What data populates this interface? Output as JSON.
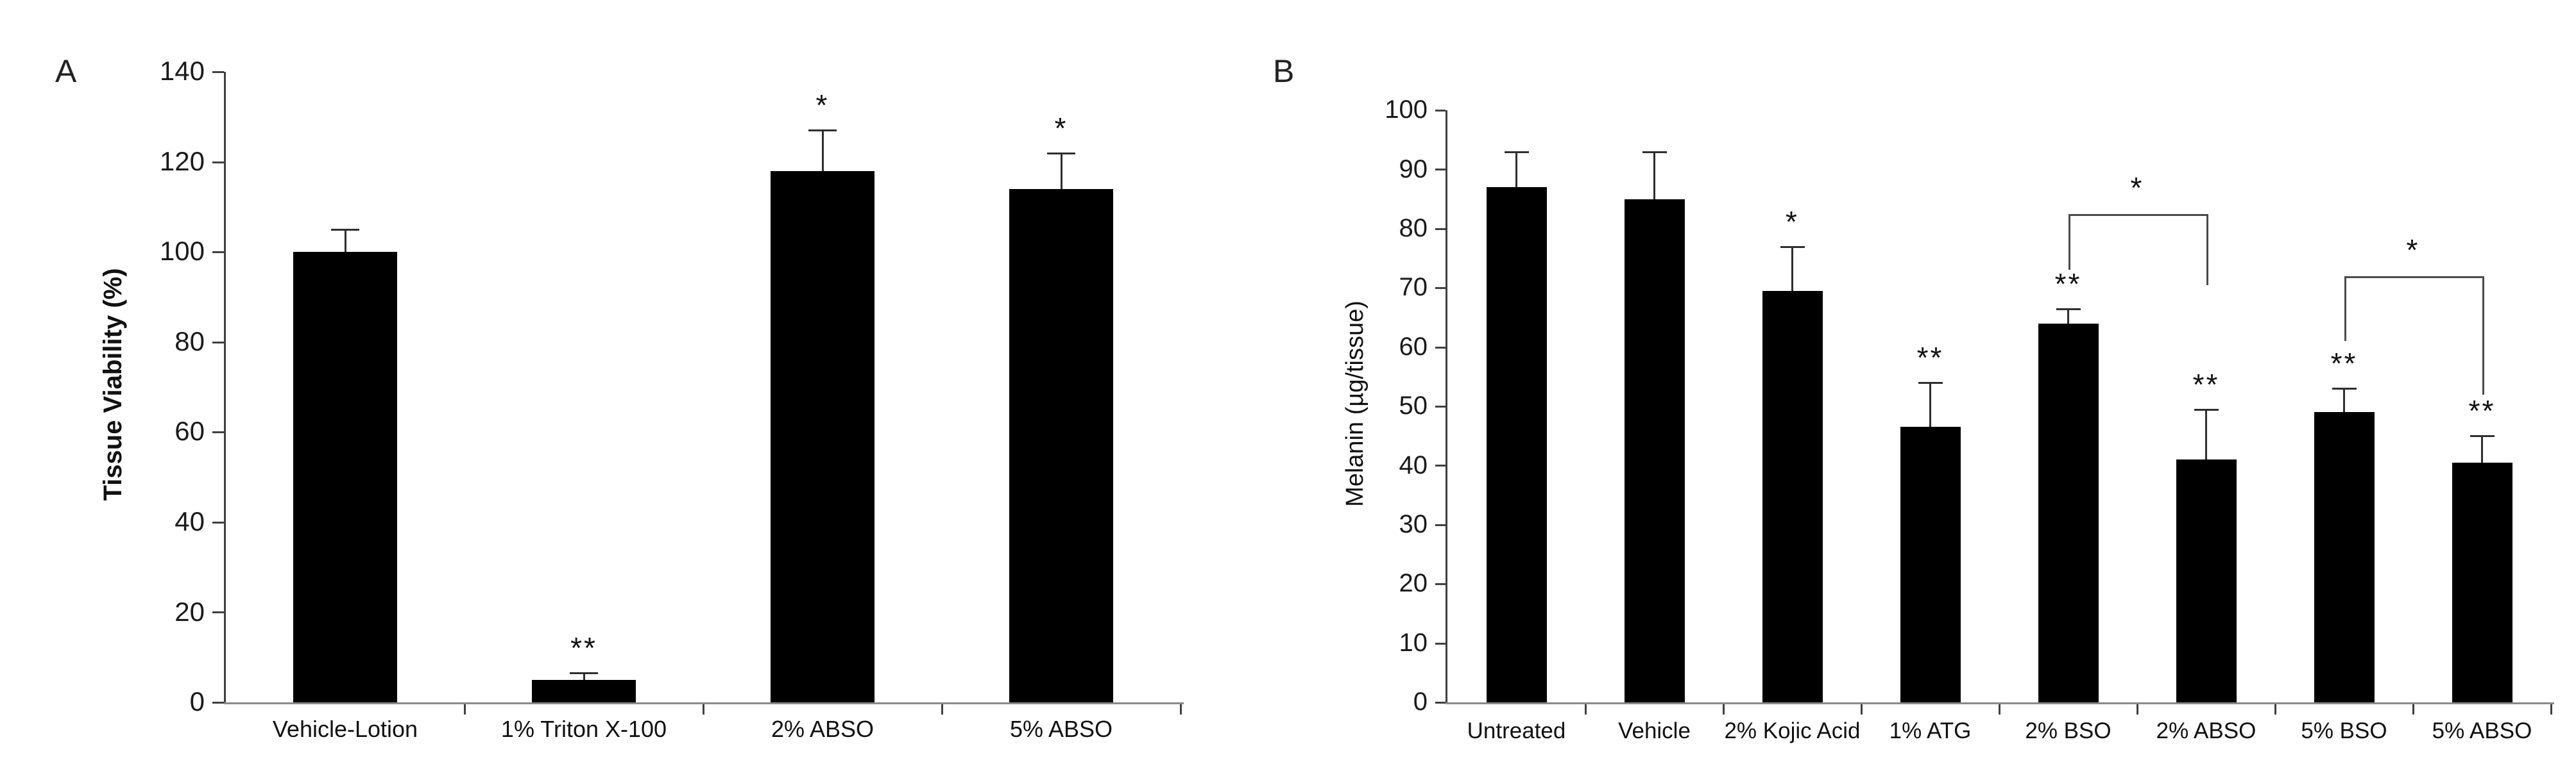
{
  "figure_title": "",
  "panel_labels": {
    "a": "A",
    "b": "B"
  },
  "style_colors": {
    "bar": "#000000",
    "axis": "#3f3f3f",
    "baseline": "#8a8a8a",
    "error_bar": "#2e2e2e",
    "bracket": "#4a4a4a",
    "text": "#111111",
    "background": "#ffffff"
  },
  "chart_data": [
    {
      "type": "bar",
      "panel_label": "A",
      "title": "",
      "xlabel": "",
      "ylabel": "Tissue Viability (%)",
      "ylabel_bold": true,
      "ylim": [
        0,
        140
      ],
      "ytick_step": 20,
      "yticks": [
        "0",
        "20",
        "40",
        "60",
        "80",
        "100",
        "120",
        "140"
      ],
      "categories": [
        "Vehicle-Lotion",
        "1% Triton X-100",
        "2% ABSO",
        "5% ABSO"
      ],
      "values": [
        100,
        5,
        118,
        114
      ],
      "errors_plus": [
        5,
        1.5,
        9,
        8
      ],
      "significance": [
        "",
        "**",
        "*",
        "*"
      ],
      "legend": [],
      "grid": false,
      "brackets": []
    },
    {
      "type": "bar",
      "panel_label": "B",
      "title": "",
      "xlabel": "",
      "ylabel": "Melanin (µg/tissue)",
      "ylabel_bold": false,
      "ylim": [
        0,
        100
      ],
      "ytick_step": 10,
      "yticks": [
        "0",
        "10",
        "20",
        "30",
        "40",
        "50",
        "60",
        "70",
        "80",
        "90",
        "100"
      ],
      "categories": [
        "Untreated",
        "Vehicle",
        "2% Kojic Acid",
        "1% ATG",
        "2% BSO",
        "2% ABSO",
        "5% BSO",
        "5% ABSO"
      ],
      "values": [
        87,
        85,
        69.5,
        46.5,
        64,
        41,
        49,
        40.5
      ],
      "errors_plus": [
        6,
        8,
        7.5,
        7.5,
        2.5,
        8.5,
        4,
        4.5
      ],
      "significance": [
        "",
        "",
        "*",
        "**",
        "**",
        "**",
        "**",
        "**"
      ],
      "legend": [],
      "grid": false,
      "brackets": [
        {
          "from_index": 4,
          "to_index": 5,
          "label": "*",
          "top_value": 82.5,
          "left_leg_to_value": 73,
          "right_leg_to_value": 70.5
        },
        {
          "from_index": 6,
          "to_index": 7,
          "label": "*",
          "top_value": 72,
          "left_leg_to_value": 61,
          "right_leg_to_value": 52
        }
      ]
    }
  ]
}
